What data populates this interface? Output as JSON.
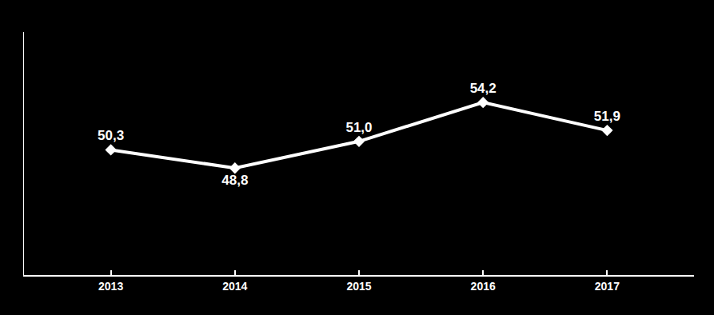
{
  "chart_data": {
    "type": "line",
    "x": [
      2013,
      2014,
      2015,
      2016,
      2017
    ],
    "values": [
      50.3,
      48.8,
      51.0,
      54.2,
      51.9
    ],
    "value_labels": [
      "50,3",
      "48,8",
      "51,0",
      "54,2",
      "51,9"
    ],
    "data_labels": true,
    "color": "#ffffff",
    "marker": "diamond",
    "xlim": [
      2012.3,
      2017.7
    ],
    "xticks": [
      2013,
      2014,
      2015,
      2016,
      2017
    ],
    "ylim": [
      40,
      60
    ],
    "yticks": [],
    "tick_labels": "x",
    "grid": false
  }
}
